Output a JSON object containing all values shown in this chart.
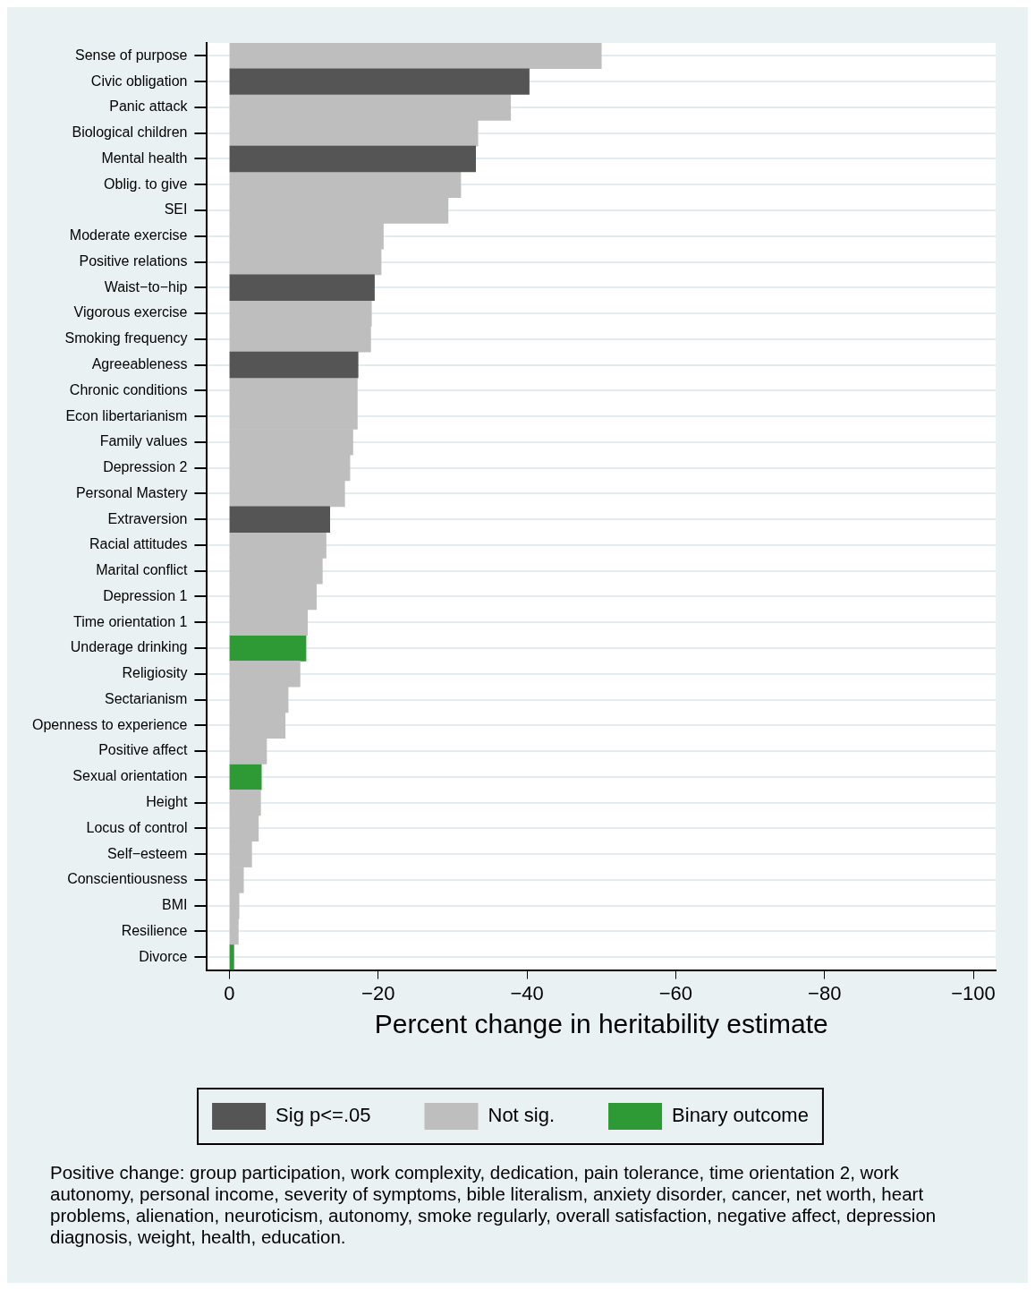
{
  "chart_data": {
    "type": "bar",
    "orientation": "horizontal",
    "xlabel": "Percent change in heritability estimate",
    "categories": [
      "Sense of purpose",
      "Civic obligation",
      "Panic attack",
      "Biological children",
      "Mental health",
      "Oblig. to give",
      "SEI",
      "Moderate exercise",
      "Positive relations",
      "Waist−to−hip",
      "Vigorous exercise",
      "Smoking frequency",
      "Agreeableness",
      "Chronic conditions",
      "Econ libertarianism",
      "Family values",
      "Depression 2",
      "Personal Mastery",
      "Extraversion",
      "Racial attitudes",
      "Marital conflict",
      "Depression 1",
      "Time orientation 1",
      "Underage drinking",
      "Religiosity",
      "Sectarianism",
      "Openness to experience",
      "Positive affect",
      "Sexual orientation",
      "Height",
      "Locus of control",
      "Self−esteem",
      "Conscientiousness",
      "BMI",
      "Resilience",
      "Divorce"
    ],
    "series": [
      {
        "name": "Sig p<=.05",
        "color": "#555555",
        "values": [
          null,
          -40.3,
          null,
          null,
          -33.1,
          null,
          null,
          null,
          null,
          -19.5,
          null,
          null,
          -17.3,
          null,
          null,
          null,
          null,
          null,
          -13.5,
          null,
          null,
          null,
          null,
          null,
          null,
          null,
          null,
          null,
          null,
          null,
          null,
          null,
          null,
          null,
          null,
          null
        ]
      },
      {
        "name": "Not sig.",
        "color": "#bebebe",
        "values": [
          -50,
          null,
          -37.8,
          -33.4,
          null,
          -31.1,
          -29.4,
          -20.7,
          -20.4,
          null,
          -19.1,
          -19,
          null,
          -17.2,
          -17.2,
          -16.6,
          -16.2,
          -15.5,
          null,
          -13,
          -12.5,
          -11.7,
          -10.5,
          null,
          -9.5,
          -7.9,
          -7.5,
          -5,
          null,
          -4.2,
          -3.9,
          -3,
          -1.9,
          -1.3,
          -1.2,
          null
        ]
      },
      {
        "name": "Binary outcome",
        "color": "#2e9a35",
        "values": [
          null,
          null,
          null,
          null,
          null,
          null,
          null,
          null,
          null,
          null,
          null,
          null,
          null,
          null,
          null,
          null,
          null,
          null,
          null,
          null,
          null,
          null,
          null,
          -10.3,
          null,
          null,
          null,
          null,
          -4.3,
          null,
          null,
          null,
          null,
          null,
          null,
          -0.6
        ]
      }
    ],
    "xlim": [
      3,
      -103
    ],
    "xticks": [
      0,
      {
        "value": -20,
        "label": "−20"
      },
      {
        "value": -40,
        "label": "−40"
      },
      {
        "value": -60,
        "label": "−60"
      },
      {
        "value": -80,
        "label": "−80"
      },
      {
        "value": -100,
        "label": "−100"
      }
    ],
    "grid": "y",
    "legend": "bottom",
    "annotations": [
      "Positive change: group participation, work complexity, dedication, pain tolerance, time orientation 2, work autonomy, personal income, severity of symptoms, bible literalism, anxiety disorder, cancer, net worth, heart problems, alienation, neuroticism, autonomy, smoke regularly, overall satisfaction, negative affect, depression diagnosis, weight, health, education."
    ]
  }
}
